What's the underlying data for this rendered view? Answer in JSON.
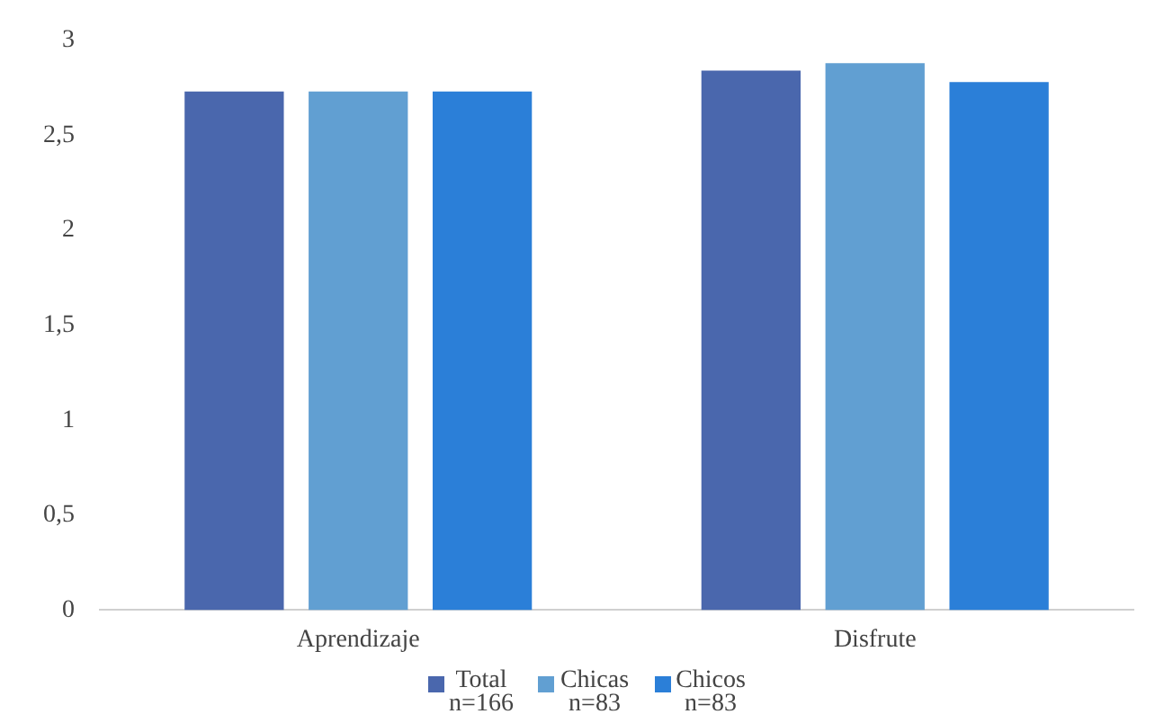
{
  "chart_data": {
    "type": "bar",
    "categories": [
      "Aprendizaje",
      "Disfrute"
    ],
    "series": [
      {
        "name": "Total\nn=166",
        "color": "#4a67ad",
        "values": [
          2.73,
          2.84
        ]
      },
      {
        "name": "Chicas\nn=83",
        "color": "#619fd2",
        "values": [
          2.73,
          2.88
        ]
      },
      {
        "name": "Chicos\nn=83",
        "color": "#2b7fd8",
        "values": [
          2.73,
          2.78
        ]
      }
    ],
    "ylim": [
      0,
      3
    ],
    "yticks": [
      0,
      {
        "value": 0.5,
        "label": "0,5"
      },
      1,
      {
        "value": 1.5,
        "label": "1,5"
      },
      2,
      {
        "value": 2.5,
        "label": "2,5"
      },
      3
    ],
    "grid": false,
    "legend": "bottom"
  }
}
